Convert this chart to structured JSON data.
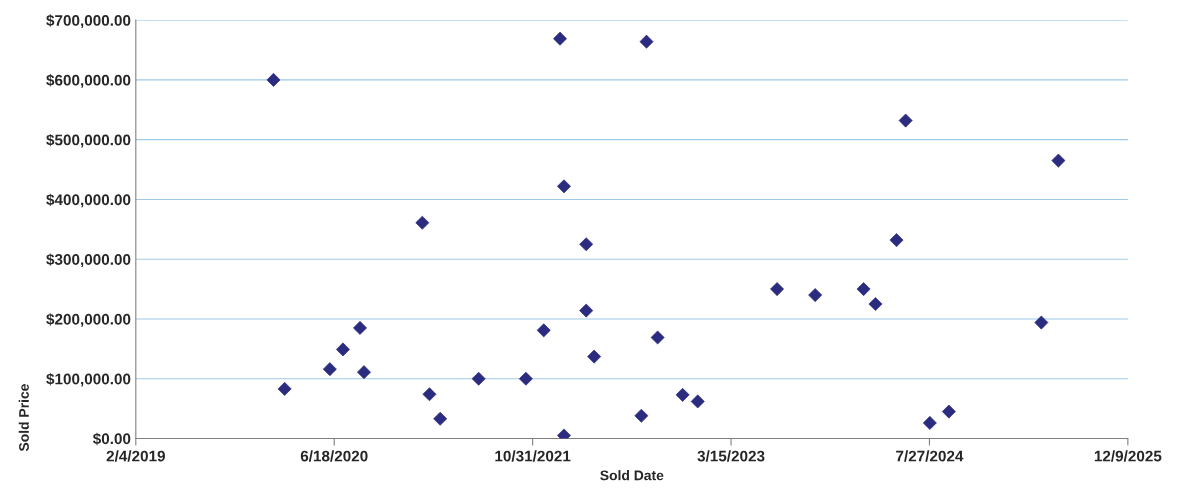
{
  "chart_data": {
    "type": "scatter",
    "xlabel": "Sold Date",
    "ylabel": "Sold Price",
    "x": [
      "2020-01-17",
      "2020-02-14",
      "2020-06-07",
      "2020-07-10",
      "2020-08-22",
      "2020-09-01",
      "2021-01-26",
      "2021-02-13",
      "2021-03-12",
      "2021-06-17",
      "2021-10-14",
      "2021-11-28",
      "2022-01-08",
      "2022-01-18",
      "2022-01-18",
      "2022-03-15",
      "2022-03-15",
      "2022-04-04",
      "2022-08-01",
      "2022-08-14",
      "2022-09-11",
      "2022-11-13",
      "2022-12-21",
      "2023-07-09",
      "2023-10-13",
      "2024-02-12",
      "2024-03-13",
      "2024-05-05",
      "2024-05-28",
      "2024-07-28",
      "2024-09-14",
      "2025-05-05",
      "2025-06-17"
    ],
    "values": [
      600000,
      83000,
      116000,
      149000,
      185000,
      111000,
      361000,
      74000,
      33000,
      100000,
      100000,
      181000,
      669000,
      422000,
      5000,
      325000,
      214000,
      137000,
      38000,
      664000,
      169000,
      73000,
      62000,
      250000,
      240000,
      250000,
      225000,
      332000,
      532000,
      26000,
      45000,
      194000,
      465000
    ],
    "color": "#2b2b80",
    "marker": "diamond",
    "grid": "y",
    "xlim": [
      "2019-02-04",
      "2025-12-09"
    ],
    "xticks": [
      {
        "value": "2019-02-04",
        "label": "2/4/2019"
      },
      {
        "value": "2020-06-18",
        "label": "6/18/2020"
      },
      {
        "value": "2021-10-31",
        "label": "10/31/2021"
      },
      {
        "value": "2023-03-15",
        "label": "3/15/2023"
      },
      {
        "value": "2024-07-27",
        "label": "7/27/2024"
      },
      {
        "value": "2025-12-09",
        "label": "12/9/2025"
      }
    ],
    "ylim": [
      0,
      700000
    ],
    "yticks": [
      {
        "value": 0,
        "label": "$0.00"
      },
      {
        "value": 100000,
        "label": "$100,000.00"
      },
      {
        "value": 200000,
        "label": "$200,000.00"
      },
      {
        "value": 300000,
        "label": "$300,000.00"
      },
      {
        "value": 400000,
        "label": "$400,000.00"
      },
      {
        "value": 500000,
        "label": "$500,000.00"
      },
      {
        "value": 600000,
        "label": "$600,000.00"
      },
      {
        "value": 700000,
        "label": "$700,000.00"
      }
    ]
  }
}
